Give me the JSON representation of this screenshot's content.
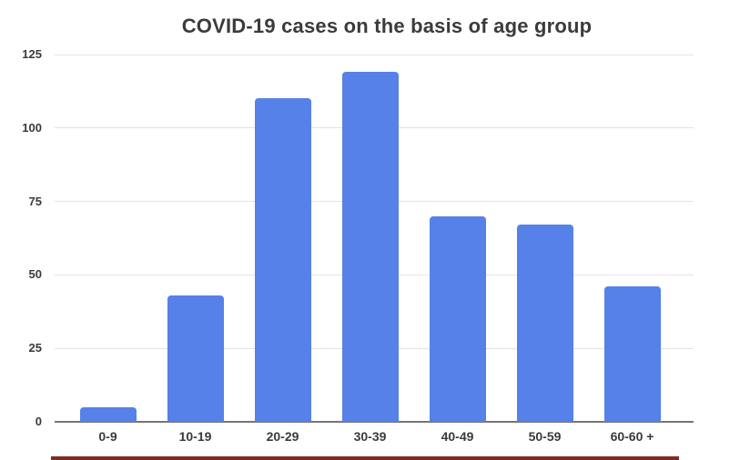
{
  "title": "COVID-19 cases on the basis of age group",
  "colors": {
    "background": "#FFFFFF",
    "bar": "#5581E9",
    "grid": "#E3E3E3",
    "axis_line": "#757575",
    "title_text": "#3B3B3B",
    "tick_text": "#3A3A3A",
    "bottom_strip": "#7B2D22"
  },
  "chart_data": {
    "type": "bar",
    "title": "COVID-19 cases on the basis of age group",
    "categories": [
      "0-9",
      "10-19",
      "20-29",
      "30-39",
      "40-49",
      "50-59",
      "60-60 +"
    ],
    "values": [
      5,
      43,
      110,
      119,
      70,
      67,
      46
    ],
    "xlabel": "",
    "ylabel": "",
    "ylim": [
      0,
      125
    ],
    "yticks": [
      0,
      25,
      50,
      75,
      100,
      125
    ],
    "grid": true,
    "legend": false,
    "bar_color": "#5581E9"
  }
}
